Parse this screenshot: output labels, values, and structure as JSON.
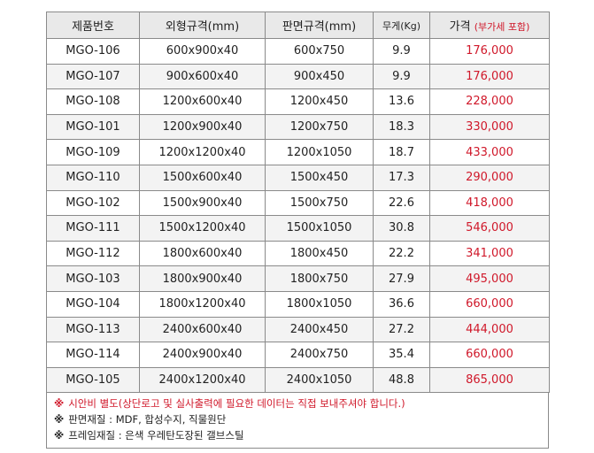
{
  "header": {
    "product_no": "제품번호",
    "outer_size": "외형규격(mm)",
    "board_size": "판면규격(mm)",
    "weight": "무게(Kg)",
    "price": "가격",
    "price_note": "(부가세 포함)"
  },
  "rows": [
    {
      "id": "MGO-106",
      "outer": "600x900x40",
      "board": "600x750",
      "weight": "9.9",
      "price": "176,000"
    },
    {
      "id": "MGO-107",
      "outer": "900x600x40",
      "board": "900x450",
      "weight": "9.9",
      "price": "176,000"
    },
    {
      "id": "MGO-108",
      "outer": "1200x600x40",
      "board": "1200x450",
      "weight": "13.6",
      "price": "228,000"
    },
    {
      "id": "MGO-101",
      "outer": "1200x900x40",
      "board": "1200x750",
      "weight": "18.3",
      "price": "330,000"
    },
    {
      "id": "MGO-109",
      "outer": "1200x1200x40",
      "board": "1200x1050",
      "weight": "18.7",
      "price": "433,000"
    },
    {
      "id": "MGO-110",
      "outer": "1500x600x40",
      "board": "1500x450",
      "weight": "17.3",
      "price": "290,000"
    },
    {
      "id": "MGO-102",
      "outer": "1500x900x40",
      "board": "1500x750",
      "weight": "22.6",
      "price": "418,000"
    },
    {
      "id": "MGO-111",
      "outer": "1500x1200x40",
      "board": "1500x1050",
      "weight": "30.8",
      "price": "546,000"
    },
    {
      "id": "MGO-112",
      "outer": "1800x600x40",
      "board": "1800x450",
      "weight": "22.2",
      "price": "341,000"
    },
    {
      "id": "MGO-103",
      "outer": "1800x900x40",
      "board": "1800x750",
      "weight": "27.9",
      "price": "495,000"
    },
    {
      "id": "MGO-104",
      "outer": "1800x1200x40",
      "board": "1800x1050",
      "weight": "36.6",
      "price": "660,000"
    },
    {
      "id": "MGO-113",
      "outer": "2400x600x40",
      "board": "2400x450",
      "weight": "27.2",
      "price": "444,000"
    },
    {
      "id": "MGO-114",
      "outer": "2400x900x40",
      "board": "2400x750",
      "weight": "35.4",
      "price": "660,000"
    },
    {
      "id": "MGO-105",
      "outer": "2400x1200x40",
      "board": "2400x1050",
      "weight": "48.8",
      "price": "865,000"
    }
  ],
  "notes": {
    "mark": "※",
    "line1": "시안비 별도(상단로고 및 실사출력에 필요한 데이터는 직접 보내주셔야 합니다.)",
    "line2": "판면재질 : MDF, 합성수지, 직물원단",
    "line3": "프레임재질 : 은색 우레탄도장된 갤브스틸"
  },
  "colors": {
    "accent_red": "#d0182a",
    "header_bg": "#e9e9e9",
    "stripe_bg": "#f3f3f3",
    "border": "#8a8a8a"
  }
}
